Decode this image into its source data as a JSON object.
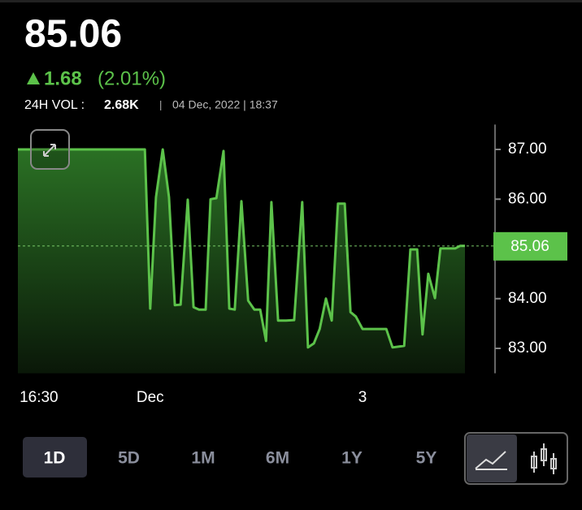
{
  "header": {
    "price": "85.06",
    "change": "1.68",
    "change_pct": "(2.01%)",
    "volume_label": "24H VOL :",
    "volume": "2.68K",
    "separator": "|",
    "timestamp": "04 Dec, 2022 | 18:37"
  },
  "chart_data": {
    "type": "area-line",
    "color": "#5cc24a",
    "x": [
      0,
      28.4,
      29.6,
      30.9,
      32.4,
      33.8,
      35.1,
      36.4,
      38.0,
      39.3,
      40.5,
      42.0,
      43.1,
      44.4,
      46.0,
      47.3,
      48.5,
      50.0,
      51.5,
      52.9,
      54.2,
      55.5,
      56.7,
      58.2,
      60.0,
      61.8,
      63.6,
      64.9,
      66.2,
      67.5,
      68.9,
      70.2,
      71.6,
      73.1,
      74.4,
      75.6,
      77.1,
      82.4,
      83.8,
      86.4,
      87.8,
      89.3,
      90.5,
      91.8,
      93.3,
      94.5,
      97.8,
      98.9,
      100
    ],
    "values": [
      87.0,
      87.0,
      83.8,
      86.04,
      87.0,
      86.04,
      83.87,
      83.88,
      85.99,
      83.83,
      83.78,
      83.78,
      86.0,
      86.02,
      86.97,
      83.8,
      83.78,
      85.96,
      83.96,
      83.78,
      83.78,
      83.15,
      85.94,
      83.56,
      83.56,
      83.57,
      85.94,
      83.02,
      83.1,
      83.39,
      84.0,
      83.56,
      85.91,
      85.91,
      83.73,
      83.64,
      83.39,
      83.39,
      83.02,
      83.05,
      84.99,
      84.99,
      83.28,
      84.5,
      84.01,
      85.01,
      85.01,
      85.06,
      85.06
    ],
    "xlim": [
      0,
      100
    ],
    "xticks": [
      {
        "value": 4.7,
        "label": "16:30"
      },
      {
        "value": 29.6,
        "label": "Dec"
      },
      {
        "value": 77.1,
        "label": "3"
      }
    ],
    "ylim": [
      82.5,
      87.5
    ],
    "yticks": [
      {
        "value": 83,
        "label": "83.00"
      },
      {
        "value": 84,
        "label": "84.00"
      },
      {
        "value": 85,
        "label": "85.00"
      },
      {
        "value": 86,
        "label": "86.00"
      },
      {
        "value": 87,
        "label": "87.00"
      }
    ],
    "reference_value": 85.06
  },
  "ranges": [
    "1D",
    "5D",
    "1M",
    "6M",
    "1Y",
    "5Y"
  ],
  "selected_range": "1D"
}
